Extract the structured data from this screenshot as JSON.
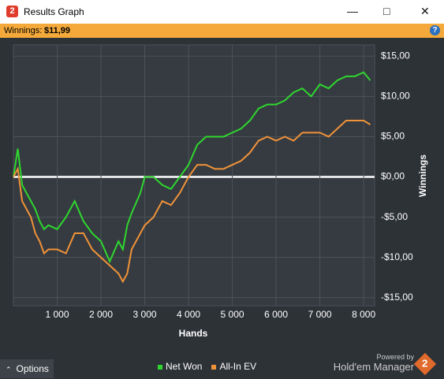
{
  "window": {
    "title": "Results Graph",
    "winnings_label": "Winnings:",
    "winnings_value": "$11,99",
    "options": "Options",
    "powered_by": "Powered by",
    "brand": "Hold'em Manager"
  },
  "chart_data": {
    "type": "line",
    "xlabel": "Hands",
    "ylabel": "Winnings",
    "x": [
      0,
      100,
      200,
      300,
      400,
      500,
      600,
      700,
      800,
      1000,
      1200,
      1400,
      1600,
      1800,
      2000,
      2200,
      2400,
      2500,
      2600,
      2700,
      2900,
      3000,
      3200,
      3400,
      3600,
      3800,
      4000,
      4200,
      4400,
      4600,
      4800,
      5000,
      5200,
      5400,
      5600,
      5800,
      6000,
      6200,
      6400,
      6600,
      6800,
      7000,
      7200,
      7400,
      7600,
      7800,
      8000,
      8150
    ],
    "series": [
      {
        "name": "Net Won",
        "color": "#2fd62f",
        "values": [
          0,
          3.5,
          -1,
          -2,
          -3,
          -4,
          -5.5,
          -6.5,
          -6,
          -6.5,
          -5,
          -3,
          -5.5,
          -7,
          -8,
          -10.5,
          -8,
          -9,
          -6,
          -4.5,
          -2,
          0,
          0,
          -1,
          -1.5,
          0,
          1.5,
          4,
          5,
          5,
          5,
          5.5,
          6,
          7,
          8.5,
          9,
          9,
          9.5,
          10.5,
          11,
          10,
          11.5,
          11,
          12,
          12.5,
          12.5,
          13,
          12
        ]
      },
      {
        "name": "All-In EV",
        "color": "#f0923a",
        "values": [
          0,
          1,
          -3,
          -4,
          -5,
          -7,
          -8,
          -9.5,
          -9,
          -9,
          -9.5,
          -7,
          -7,
          -9,
          -10,
          -11,
          -12,
          -13,
          -12,
          -9,
          -7,
          -6,
          -5,
          -3,
          -3.5,
          -2,
          0,
          1.5,
          1.5,
          1,
          1,
          1.5,
          2,
          3,
          4.5,
          5,
          4.5,
          5,
          4.5,
          5.5,
          5.5,
          5.5,
          5,
          6,
          7,
          7,
          7,
          6.5
        ]
      }
    ],
    "xlim": [
      0,
      8250
    ],
    "ylim": [
      -16,
      16.4
    ],
    "xticks": [
      {
        "value": 1000,
        "label": "1 000"
      },
      {
        "value": 2000,
        "label": "2 000"
      },
      {
        "value": 3000,
        "label": "3 000"
      },
      {
        "value": 4000,
        "label": "4 000"
      },
      {
        "value": 5000,
        "label": "5 000"
      },
      {
        "value": 6000,
        "label": "6 000"
      },
      {
        "value": 7000,
        "label": "7 000"
      },
      {
        "value": 8000,
        "label": "8 000"
      }
    ],
    "yticks": [
      {
        "value": 15,
        "label": "$15,00"
      },
      {
        "value": 10,
        "label": "$10,00"
      },
      {
        "value": 5,
        "label": "$5,00"
      },
      {
        "value": 0,
        "label": "$0,00"
      },
      {
        "value": -5,
        "label": "-$5,00"
      },
      {
        "value": -10,
        "label": "-$10,00"
      },
      {
        "value": -15,
        "label": "-$15,00"
      }
    ],
    "grid": true
  }
}
